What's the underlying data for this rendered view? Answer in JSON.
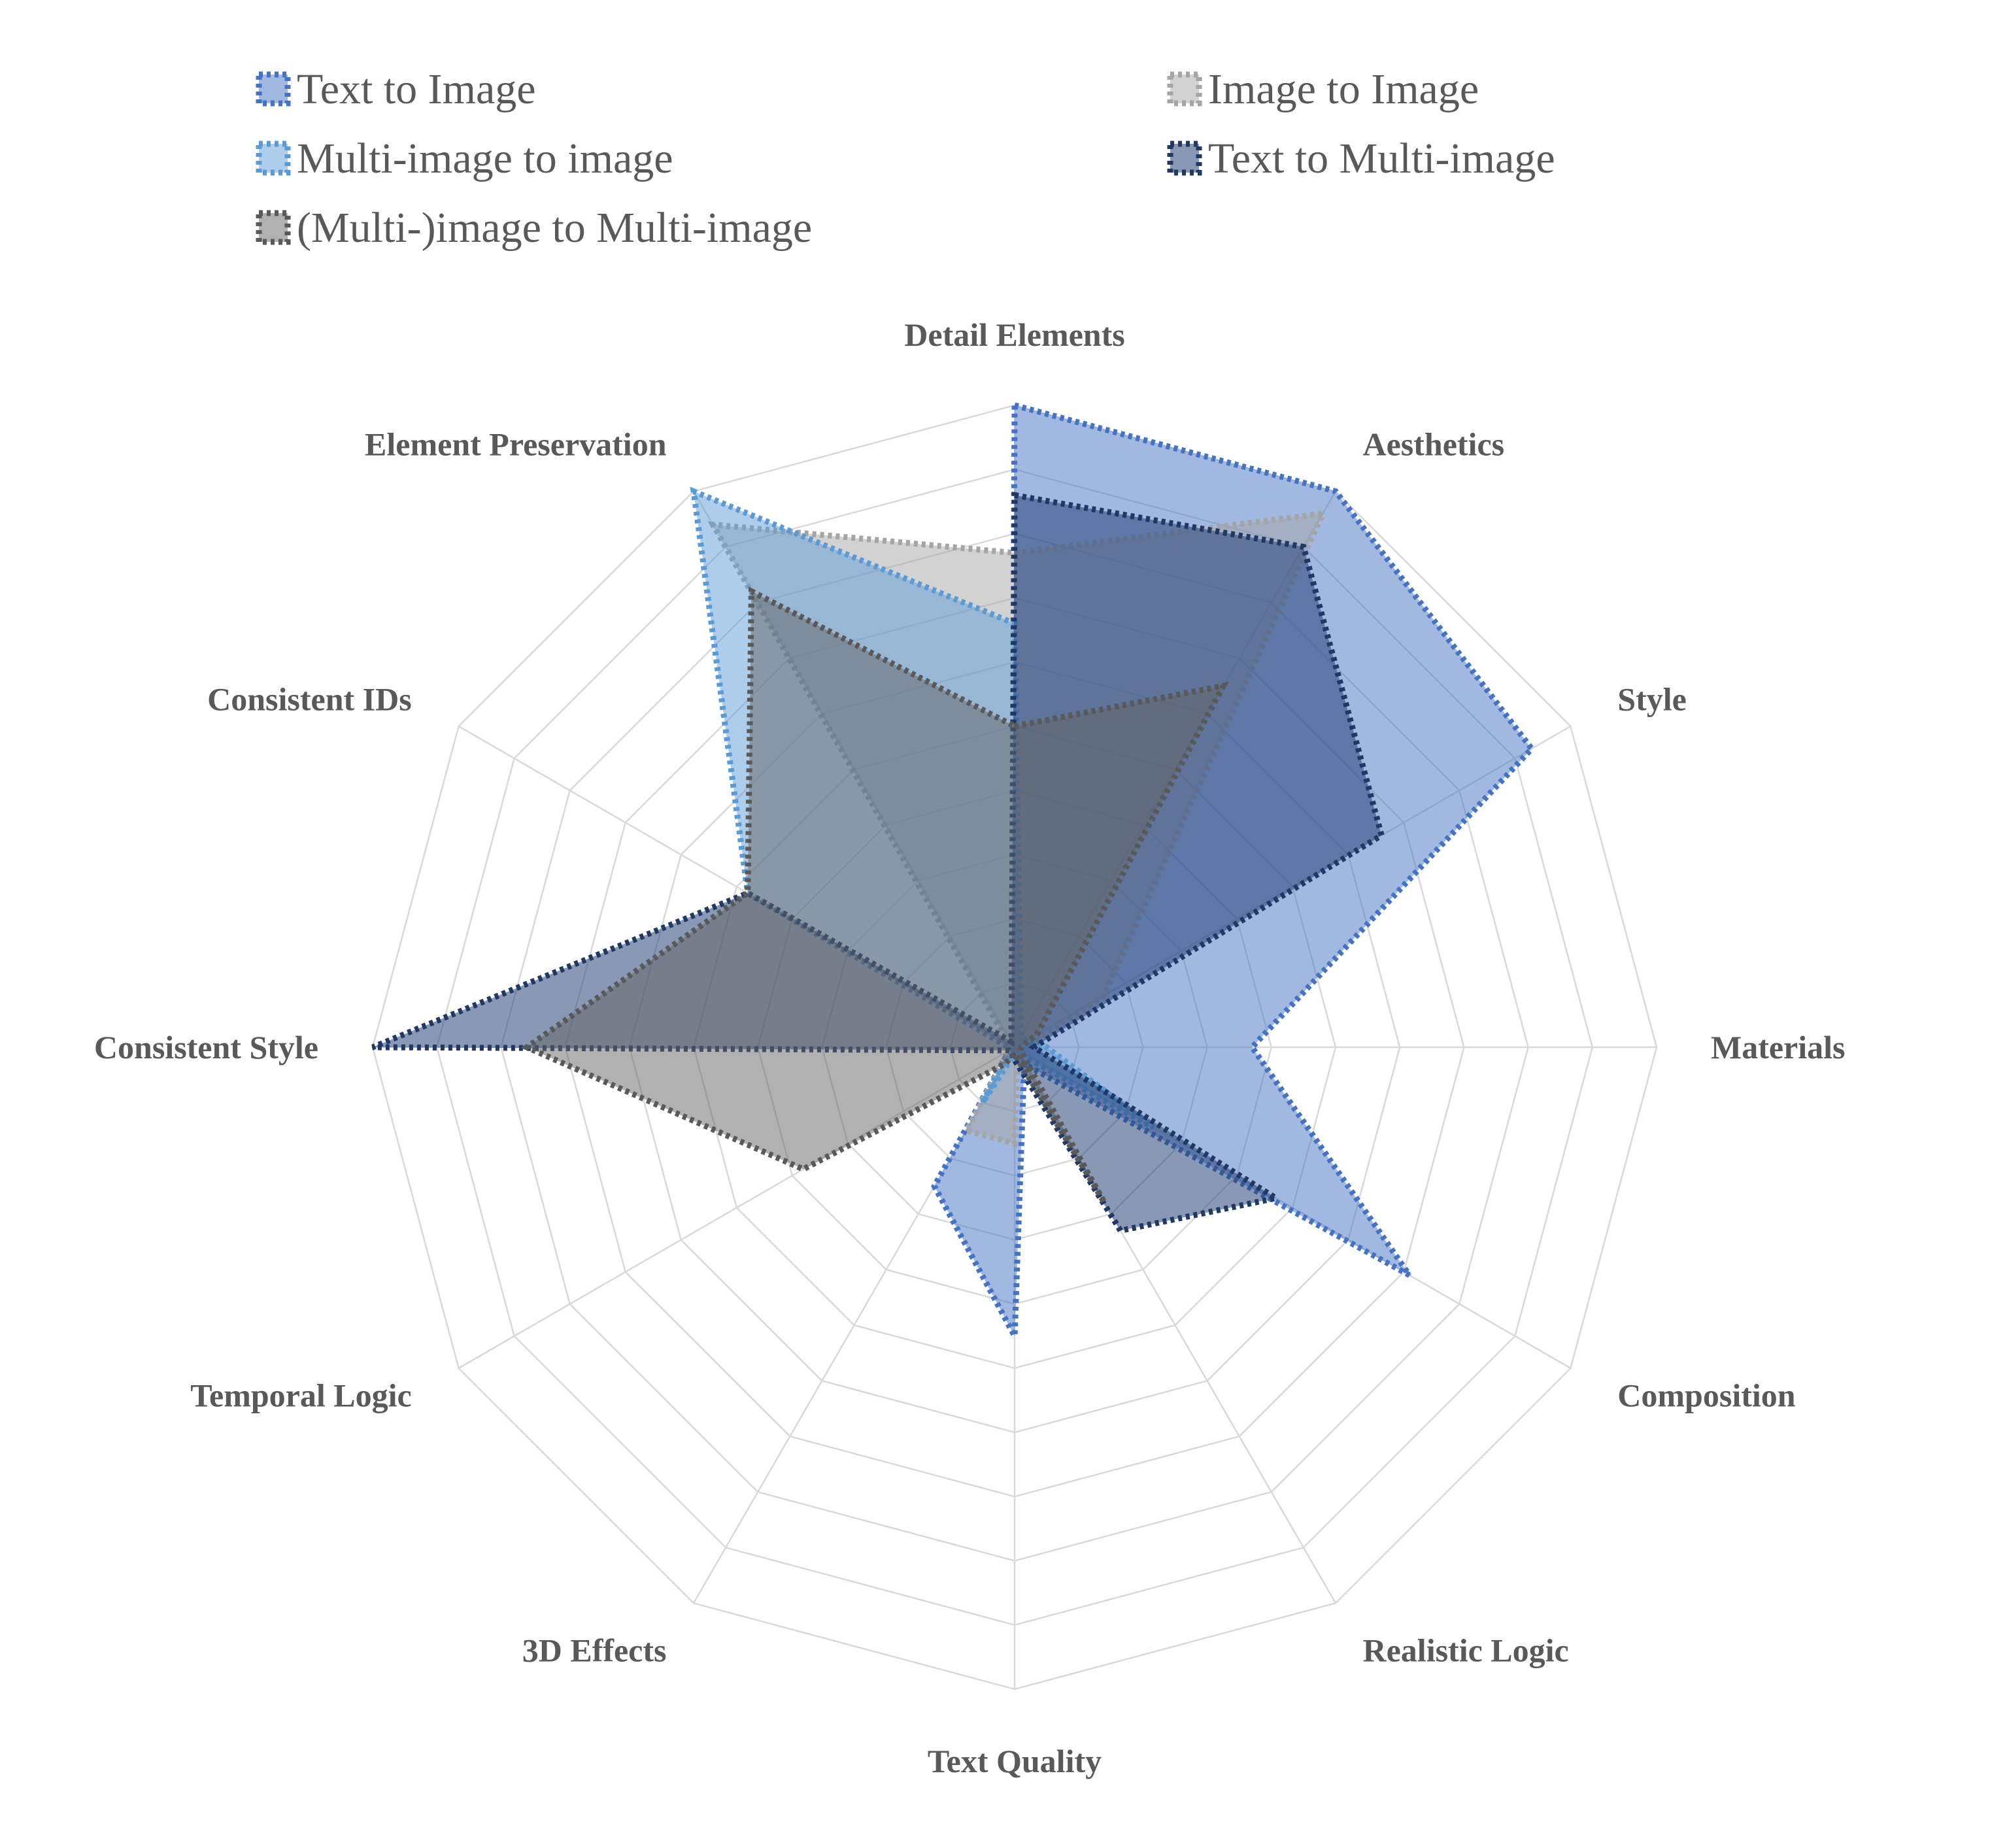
{
  "chart_data": {
    "type": "radar",
    "title": "",
    "axes": [
      "Detail Elements",
      "Aesthetics",
      "Style",
      "Materials",
      "Composition",
      "Realistic Logic",
      "Text Quality",
      "3D Effects",
      "Temporal Logic",
      "Consistent Style",
      "Consistent IDs",
      "Element Preservation"
    ],
    "rings": 10,
    "rmax": 10,
    "legend_position": "top",
    "series": [
      {
        "name": "Text to Image",
        "color": "#4472c4",
        "fill": "rgba(68,114,196,0.5)",
        "values": [
          10,
          10,
          9.3,
          3.7,
          7.1,
          0.3,
          4.5,
          2.5,
          0.1,
          0.1,
          0.1,
          0.1
        ]
      },
      {
        "name": "Image to Image",
        "color": "#a5a5a5",
        "fill": "rgba(165,165,165,0.5)",
        "values": [
          7.7,
          9.6,
          1.6,
          0.2,
          0.2,
          0.1,
          1.5,
          1.5,
          0.1,
          0.1,
          0.1,
          9.4
        ]
      },
      {
        "name": "Multi-image to image",
        "color": "#5b9bd5",
        "fill": "rgba(91,155,213,0.5)",
        "values": [
          6.6,
          0.2,
          0.2,
          0.5,
          2.5,
          0.1,
          0.1,
          1.0,
          0.1,
          0.1,
          4.8,
          10
        ]
      },
      {
        "name": "Text to Multi-image",
        "color": "#203864",
        "fill": "rgba(38,68,120,0.55)",
        "values": [
          8.6,
          9.0,
          6.6,
          0.3,
          4.7,
          3.3,
          0.2,
          0.1,
          0.1,
          10,
          4.8,
          0.1
        ]
      },
      {
        "name": "(Multi-)image to Multi-image",
        "color": "#595959",
        "fill": "rgba(100,100,100,0.5)",
        "values": [
          5.0,
          6.5,
          0.4,
          0.1,
          0.1,
          2.8,
          0.1,
          0.3,
          3.8,
          7.6,
          4.8,
          8.2
        ]
      }
    ]
  }
}
